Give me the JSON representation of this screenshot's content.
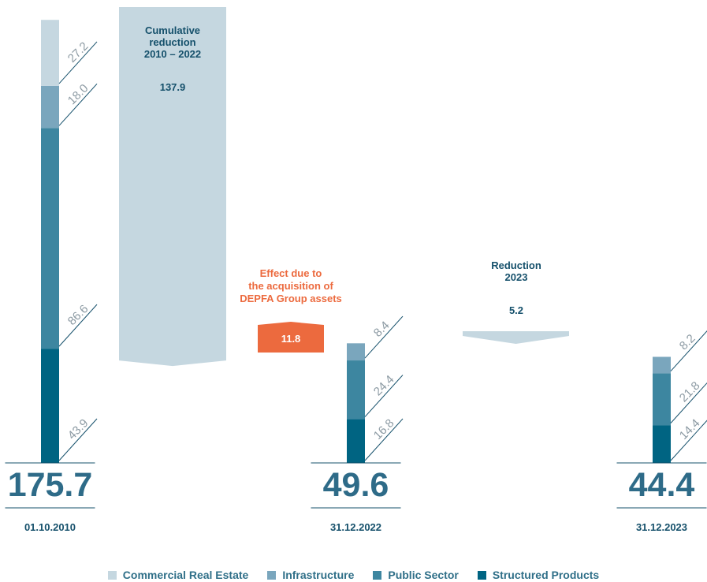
{
  "chart_data": {
    "type": "bar",
    "colors": {
      "Commercial Real Estate": "#c5d7e0",
      "Infrastructure": "#7aa6bd",
      "Public Sector": "#3d86a0",
      "Structured Products": "#006482",
      "text_dark": "#15506b",
      "total_text": "#2e6b88",
      "tick_gray": "#8c9aa3",
      "accent_orange": "#ec6a3e"
    },
    "series": [
      {
        "name": "Commercial Real Estate",
        "values": [
          27.2,
          0,
          0
        ]
      },
      {
        "name": "Infrastructure",
        "values": [
          18.0,
          8.4,
          8.2
        ]
      },
      {
        "name": "Public Sector",
        "values": [
          86.6,
          24.4,
          21.8
        ]
      },
      {
        "name": "Structured Products",
        "values": [
          43.9,
          16.8,
          14.4
        ]
      }
    ],
    "columns": [
      {
        "date": "01.10.2010",
        "total": "175.7",
        "segments": [
          {
            "series": "Structured Products",
            "value": 43.9,
            "label": "43.9"
          },
          {
            "series": "Public Sector",
            "value": 86.6,
            "label": "86.6"
          },
          {
            "series": "Infrastructure",
            "value": 18.0,
            "label": "18.0"
          },
          {
            "series": "Commercial Real Estate",
            "value": 27.2,
            "label": "27.2"
          }
        ]
      },
      {
        "date": "31.12.2022",
        "total": "49.6",
        "segments": [
          {
            "series": "Structured Products",
            "value": 16.8,
            "label": "16.8"
          },
          {
            "series": "Public Sector",
            "value": 24.4,
            "label": "24.4"
          },
          {
            "series": "Infrastructure",
            "value": 8.4,
            "label": "8.4"
          }
        ]
      },
      {
        "date": "31.12.2023",
        "total": "44.4",
        "segments": [
          {
            "series": "Structured Products",
            "value": 14.4,
            "label": "14.4"
          },
          {
            "series": "Public Sector",
            "value": 21.8,
            "label": "21.8"
          },
          {
            "series": "Infrastructure",
            "value": 8.2,
            "label": "8.2"
          }
        ]
      }
    ],
    "transitions": [
      {
        "kind": "reduction",
        "value": 137.9,
        "value_label": "137.9",
        "text": [
          "Cumulative",
          "reduction",
          "2010 – 2022"
        ]
      },
      {
        "kind": "increase",
        "value": 11.8,
        "value_label": "11.8",
        "text": [
          "Effect due to",
          "the acquisition of",
          "DEPFA Group assets"
        ]
      },
      {
        "kind": "reduction",
        "value": 5.2,
        "value_label": "5.2",
        "text": [
          "Reduction",
          "2023"
        ]
      }
    ],
    "legend": [
      "Commercial Real Estate",
      "Infrastructure",
      "Public Sector",
      "Structured Products"
    ],
    "legend_position": "bottom"
  }
}
